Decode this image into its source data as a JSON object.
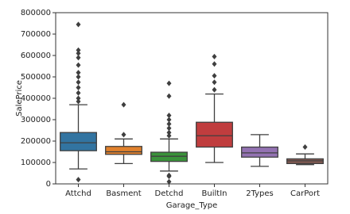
{
  "chart_data": {
    "type": "box",
    "x_label": "Garage_Type",
    "y_label": "SalePrice",
    "categories": [
      "Attchd",
      "Basment",
      "Detchd",
      "BuiltIn",
      "2Types",
      "CarPort"
    ],
    "colors": [
      "#3274a1",
      "#e1812c",
      "#3a923a",
      "#c03d3e",
      "#9372b2",
      "#845b53"
    ],
    "whislo": [
      70000,
      95000,
      60000,
      100000,
      82000,
      90000
    ],
    "q1": [
      155000,
      138000,
      105000,
      172000,
      125000,
      95000
    ],
    "median": [
      192000,
      150000,
      129000,
      225000,
      145000,
      108000
    ],
    "q3": [
      240000,
      175000,
      148000,
      288000,
      172000,
      117000
    ],
    "whishi": [
      370000,
      210000,
      210000,
      420000,
      230000,
      140000
    ],
    "fliers": [
      [
        745000,
        625000,
        610000,
        590000,
        555000,
        520000,
        500000,
        475000,
        450000,
        425000,
        400000,
        385000,
        20000
      ],
      [
        230000,
        370000
      ],
      [
        470000,
        410000,
        320000,
        300000,
        280000,
        260000,
        240000,
        225000,
        40000,
        35000,
        10000
      ],
      [
        595000,
        560000,
        505000,
        475000,
        440000
      ],
      [],
      [
        172000
      ]
    ],
    "ylim": [
      0,
      800000
    ],
    "yticks": [
      0,
      100000,
      200000,
      300000,
      400000,
      500000,
      600000,
      700000,
      800000
    ]
  }
}
